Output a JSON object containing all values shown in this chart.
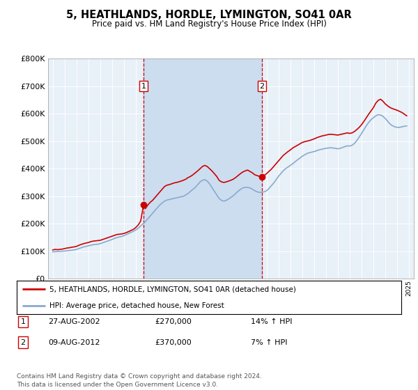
{
  "title": "5, HEATHLANDS, HORDLE, LYMINGTON, SO41 0AR",
  "subtitle": "Price paid vs. HM Land Registry's House Price Index (HPI)",
  "legend_label_red": "5, HEATHLANDS, HORDLE, LYMINGTON, SO41 0AR (detached house)",
  "legend_label_blue": "HPI: Average price, detached house, New Forest",
  "footer": "Contains HM Land Registry data © Crown copyright and database right 2024.\nThis data is licensed under the Open Government Licence v3.0.",
  "transaction1_date": "27-AUG-2002",
  "transaction1_price": 270000,
  "transaction1_hpi": "14% ↑ HPI",
  "transaction2_date": "09-AUG-2012",
  "transaction2_price": 370000,
  "transaction2_hpi": "7% ↑ HPI",
  "t1_x": 2002.646,
  "t2_x": 2012.604,
  "ylim": [
    0,
    800000
  ],
  "yticks": [
    0,
    100000,
    200000,
    300000,
    400000,
    500000,
    600000,
    700000,
    800000
  ],
  "xlim_left": 1994.6,
  "xlim_right": 2025.4,
  "red_color": "#cc0000",
  "blue_color": "#88aacc",
  "shade_color": "#ccddf0",
  "plot_bg_color": "#e8f0f8",
  "vline_color": "#cc0000",
  "red_data": [
    [
      1995.0,
      105000
    ],
    [
      1995.2,
      107000
    ],
    [
      1995.4,
      106000
    ],
    [
      1995.6,
      107000
    ],
    [
      1995.8,
      108000
    ],
    [
      1996.0,
      110000
    ],
    [
      1996.2,
      112000
    ],
    [
      1996.4,
      113000
    ],
    [
      1996.6,
      115000
    ],
    [
      1996.8,
      116000
    ],
    [
      1997.0,
      118000
    ],
    [
      1997.2,
      122000
    ],
    [
      1997.4,
      125000
    ],
    [
      1997.6,
      128000
    ],
    [
      1997.8,
      130000
    ],
    [
      1998.0,
      132000
    ],
    [
      1998.2,
      135000
    ],
    [
      1998.4,
      137000
    ],
    [
      1998.6,
      138000
    ],
    [
      1998.8,
      139000
    ],
    [
      1999.0,
      140000
    ],
    [
      1999.2,
      143000
    ],
    [
      1999.4,
      146000
    ],
    [
      1999.6,
      149000
    ],
    [
      1999.8,
      152000
    ],
    [
      2000.0,
      155000
    ],
    [
      2000.2,
      158000
    ],
    [
      2000.4,
      161000
    ],
    [
      2000.6,
      162000
    ],
    [
      2000.8,
      163000
    ],
    [
      2001.0,
      165000
    ],
    [
      2001.2,
      168000
    ],
    [
      2001.4,
      172000
    ],
    [
      2001.6,
      176000
    ],
    [
      2001.8,
      180000
    ],
    [
      2002.0,
      187000
    ],
    [
      2002.2,
      196000
    ],
    [
      2002.4,
      210000
    ],
    [
      2002.646,
      270000
    ],
    [
      2002.8,
      255000
    ],
    [
      2003.0,
      268000
    ],
    [
      2003.2,
      278000
    ],
    [
      2003.4,
      285000
    ],
    [
      2003.6,
      295000
    ],
    [
      2003.8,
      305000
    ],
    [
      2004.0,
      315000
    ],
    [
      2004.2,
      325000
    ],
    [
      2004.4,
      335000
    ],
    [
      2004.6,
      340000
    ],
    [
      2004.8,
      342000
    ],
    [
      2005.0,
      345000
    ],
    [
      2005.2,
      348000
    ],
    [
      2005.4,
      350000
    ],
    [
      2005.6,
      352000
    ],
    [
      2005.8,
      355000
    ],
    [
      2006.0,
      358000
    ],
    [
      2006.2,
      362000
    ],
    [
      2006.4,
      368000
    ],
    [
      2006.6,
      372000
    ],
    [
      2006.8,
      378000
    ],
    [
      2007.0,
      385000
    ],
    [
      2007.2,
      392000
    ],
    [
      2007.4,
      400000
    ],
    [
      2007.6,
      408000
    ],
    [
      2007.8,
      412000
    ],
    [
      2008.0,
      408000
    ],
    [
      2008.2,
      400000
    ],
    [
      2008.4,
      392000
    ],
    [
      2008.6,
      382000
    ],
    [
      2008.8,
      372000
    ],
    [
      2009.0,
      358000
    ],
    [
      2009.2,
      352000
    ],
    [
      2009.4,
      350000
    ],
    [
      2009.6,
      352000
    ],
    [
      2009.8,
      355000
    ],
    [
      2010.0,
      358000
    ],
    [
      2010.2,
      362000
    ],
    [
      2010.4,
      368000
    ],
    [
      2010.6,
      375000
    ],
    [
      2010.8,
      382000
    ],
    [
      2011.0,
      388000
    ],
    [
      2011.2,
      392000
    ],
    [
      2011.4,
      395000
    ],
    [
      2011.6,
      390000
    ],
    [
      2011.8,
      385000
    ],
    [
      2012.0,
      378000
    ],
    [
      2012.2,
      375000
    ],
    [
      2012.4,
      372000
    ],
    [
      2012.604,
      370000
    ],
    [
      2012.8,
      375000
    ],
    [
      2013.0,
      382000
    ],
    [
      2013.2,
      390000
    ],
    [
      2013.4,
      398000
    ],
    [
      2013.6,
      408000
    ],
    [
      2013.8,
      418000
    ],
    [
      2014.0,
      428000
    ],
    [
      2014.2,
      438000
    ],
    [
      2014.4,
      448000
    ],
    [
      2014.6,
      455000
    ],
    [
      2014.8,
      462000
    ],
    [
      2015.0,
      468000
    ],
    [
      2015.2,
      475000
    ],
    [
      2015.4,
      480000
    ],
    [
      2015.6,
      485000
    ],
    [
      2015.8,
      490000
    ],
    [
      2016.0,
      495000
    ],
    [
      2016.2,
      498000
    ],
    [
      2016.4,
      500000
    ],
    [
      2016.6,
      502000
    ],
    [
      2016.8,
      505000
    ],
    [
      2017.0,
      508000
    ],
    [
      2017.2,
      512000
    ],
    [
      2017.4,
      515000
    ],
    [
      2017.6,
      518000
    ],
    [
      2017.8,
      520000
    ],
    [
      2018.0,
      522000
    ],
    [
      2018.2,
      524000
    ],
    [
      2018.4,
      525000
    ],
    [
      2018.6,
      524000
    ],
    [
      2018.8,
      523000
    ],
    [
      2019.0,
      522000
    ],
    [
      2019.2,
      524000
    ],
    [
      2019.4,
      526000
    ],
    [
      2019.6,
      528000
    ],
    [
      2019.8,
      530000
    ],
    [
      2020.0,
      528000
    ],
    [
      2020.2,
      530000
    ],
    [
      2020.4,
      535000
    ],
    [
      2020.6,
      542000
    ],
    [
      2020.8,
      550000
    ],
    [
      2021.0,
      560000
    ],
    [
      2021.2,
      572000
    ],
    [
      2021.4,
      585000
    ],
    [
      2021.6,
      598000
    ],
    [
      2021.8,
      610000
    ],
    [
      2022.0,
      622000
    ],
    [
      2022.2,
      638000
    ],
    [
      2022.4,
      648000
    ],
    [
      2022.6,
      652000
    ],
    [
      2022.8,
      645000
    ],
    [
      2023.0,
      635000
    ],
    [
      2023.2,
      628000
    ],
    [
      2023.4,
      622000
    ],
    [
      2023.6,
      618000
    ],
    [
      2023.8,
      615000
    ],
    [
      2024.0,
      612000
    ],
    [
      2024.2,
      608000
    ],
    [
      2024.4,
      604000
    ],
    [
      2024.6,
      598000
    ],
    [
      2024.8,
      592000
    ]
  ],
  "blue_data": [
    [
      1995.0,
      98000
    ],
    [
      1995.2,
      99000
    ],
    [
      1995.4,
      99500
    ],
    [
      1995.6,
      100000
    ],
    [
      1995.8,
      100500
    ],
    [
      1996.0,
      101000
    ],
    [
      1996.2,
      102000
    ],
    [
      1996.4,
      103000
    ],
    [
      1996.6,
      104000
    ],
    [
      1996.8,
      105000
    ],
    [
      1997.0,
      107000
    ],
    [
      1997.2,
      110000
    ],
    [
      1997.4,
      113000
    ],
    [
      1997.6,
      116000
    ],
    [
      1997.8,
      118000
    ],
    [
      1998.0,
      120000
    ],
    [
      1998.2,
      122000
    ],
    [
      1998.4,
      124000
    ],
    [
      1998.6,
      125000
    ],
    [
      1998.8,
      126000
    ],
    [
      1999.0,
      128000
    ],
    [
      1999.2,
      131000
    ],
    [
      1999.4,
      134000
    ],
    [
      1999.6,
      137000
    ],
    [
      1999.8,
      140000
    ],
    [
      2000.0,
      143000
    ],
    [
      2000.2,
      147000
    ],
    [
      2000.4,
      150000
    ],
    [
      2000.6,
      152000
    ],
    [
      2000.8,
      154000
    ],
    [
      2001.0,
      157000
    ],
    [
      2001.2,
      161000
    ],
    [
      2001.4,
      165000
    ],
    [
      2001.6,
      169000
    ],
    [
      2001.8,
      173000
    ],
    [
      2002.0,
      178000
    ],
    [
      2002.2,
      184000
    ],
    [
      2002.4,
      192000
    ],
    [
      2002.6,
      200000
    ],
    [
      2002.8,
      208000
    ],
    [
      2003.0,
      218000
    ],
    [
      2003.2,
      228000
    ],
    [
      2003.4,
      238000
    ],
    [
      2003.6,
      248000
    ],
    [
      2003.8,
      258000
    ],
    [
      2004.0,
      268000
    ],
    [
      2004.2,
      275000
    ],
    [
      2004.4,
      282000
    ],
    [
      2004.6,
      286000
    ],
    [
      2004.8,
      288000
    ],
    [
      2005.0,
      290000
    ],
    [
      2005.2,
      292000
    ],
    [
      2005.4,
      294000
    ],
    [
      2005.6,
      296000
    ],
    [
      2005.8,
      298000
    ],
    [
      2006.0,
      300000
    ],
    [
      2006.2,
      305000
    ],
    [
      2006.4,
      310000
    ],
    [
      2006.6,
      318000
    ],
    [
      2006.8,
      325000
    ],
    [
      2007.0,
      332000
    ],
    [
      2007.2,
      342000
    ],
    [
      2007.4,
      352000
    ],
    [
      2007.6,
      358000
    ],
    [
      2007.8,
      360000
    ],
    [
      2008.0,
      355000
    ],
    [
      2008.2,
      345000
    ],
    [
      2008.4,
      332000
    ],
    [
      2008.6,
      318000
    ],
    [
      2008.8,
      305000
    ],
    [
      2009.0,
      292000
    ],
    [
      2009.2,
      285000
    ],
    [
      2009.4,
      282000
    ],
    [
      2009.6,
      285000
    ],
    [
      2009.8,
      290000
    ],
    [
      2010.0,
      296000
    ],
    [
      2010.2,
      302000
    ],
    [
      2010.4,
      310000
    ],
    [
      2010.6,
      318000
    ],
    [
      2010.8,
      325000
    ],
    [
      2011.0,
      330000
    ],
    [
      2011.2,
      332000
    ],
    [
      2011.4,
      332000
    ],
    [
      2011.6,
      330000
    ],
    [
      2011.8,
      326000
    ],
    [
      2012.0,
      320000
    ],
    [
      2012.2,
      316000
    ],
    [
      2012.4,
      314000
    ],
    [
      2012.6,
      314000
    ],
    [
      2012.8,
      316000
    ],
    [
      2013.0,
      320000
    ],
    [
      2013.2,
      328000
    ],
    [
      2013.4,
      338000
    ],
    [
      2013.6,
      348000
    ],
    [
      2013.8,
      360000
    ],
    [
      2014.0,
      372000
    ],
    [
      2014.2,
      382000
    ],
    [
      2014.4,
      392000
    ],
    [
      2014.6,
      400000
    ],
    [
      2014.8,
      406000
    ],
    [
      2015.0,
      412000
    ],
    [
      2015.2,
      418000
    ],
    [
      2015.4,
      425000
    ],
    [
      2015.6,
      432000
    ],
    [
      2015.8,
      438000
    ],
    [
      2016.0,
      445000
    ],
    [
      2016.2,
      450000
    ],
    [
      2016.4,
      455000
    ],
    [
      2016.6,
      458000
    ],
    [
      2016.8,
      460000
    ],
    [
      2017.0,
      462000
    ],
    [
      2017.2,
      465000
    ],
    [
      2017.4,
      468000
    ],
    [
      2017.6,
      470000
    ],
    [
      2017.8,
      472000
    ],
    [
      2018.0,
      474000
    ],
    [
      2018.2,
      475000
    ],
    [
      2018.4,
      476000
    ],
    [
      2018.6,
      475000
    ],
    [
      2018.8,
      474000
    ],
    [
      2019.0,
      472000
    ],
    [
      2019.2,
      474000
    ],
    [
      2019.4,
      477000
    ],
    [
      2019.6,
      480000
    ],
    [
      2019.8,
      483000
    ],
    [
      2020.0,
      482000
    ],
    [
      2020.2,
      485000
    ],
    [
      2020.4,
      492000
    ],
    [
      2020.6,
      502000
    ],
    [
      2020.8,
      515000
    ],
    [
      2021.0,
      528000
    ],
    [
      2021.2,
      542000
    ],
    [
      2021.4,
      556000
    ],
    [
      2021.6,
      568000
    ],
    [
      2021.8,
      578000
    ],
    [
      2022.0,
      585000
    ],
    [
      2022.2,
      592000
    ],
    [
      2022.4,
      596000
    ],
    [
      2022.6,
      595000
    ],
    [
      2022.8,
      590000
    ],
    [
      2023.0,
      582000
    ],
    [
      2023.2,
      572000
    ],
    [
      2023.4,
      562000
    ],
    [
      2023.6,
      556000
    ],
    [
      2023.8,
      552000
    ],
    [
      2024.0,
      550000
    ],
    [
      2024.2,
      550000
    ],
    [
      2024.4,
      552000
    ],
    [
      2024.6,
      554000
    ],
    [
      2024.8,
      555000
    ]
  ]
}
